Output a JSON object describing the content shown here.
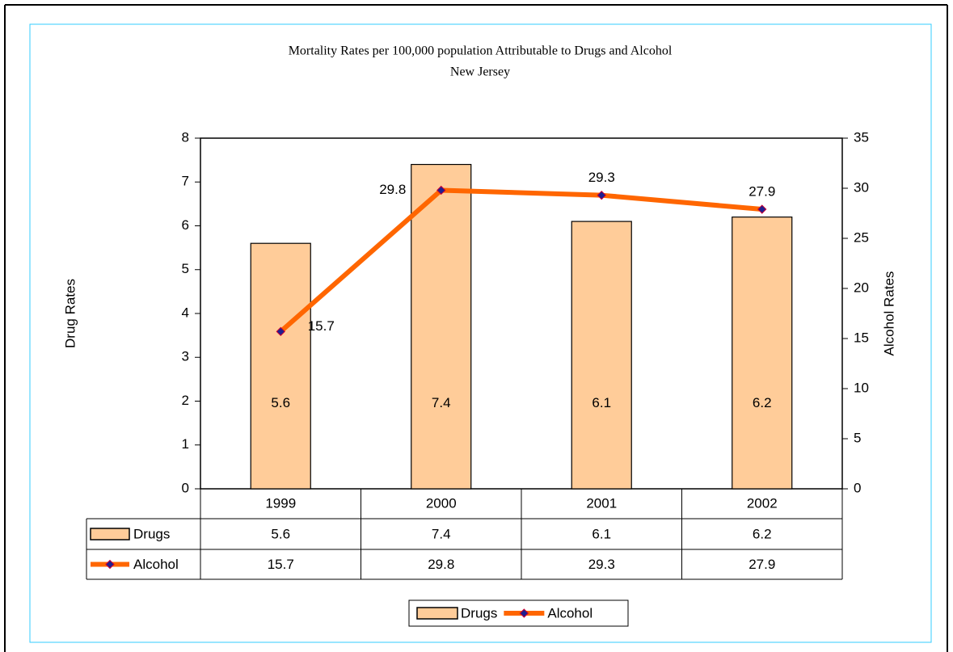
{
  "chart_data": {
    "type": "bar",
    "title": "Mortality Rates per 100,000 population Attributable to Drugs and Alcohol",
    "subtitle": "New Jersey",
    "y_label": "Drug Rates",
    "y2_label": "Alcohol Rates",
    "categories": [
      "1999",
      "2000",
      "2001",
      "2002"
    ],
    "series": [
      {
        "name": "Drugs",
        "type": "bar",
        "color": "#FFCC99",
        "values": [
          5.6,
          7.4,
          6.1,
          6.2
        ]
      },
      {
        "name": "Alcohol",
        "type": "line",
        "axis": "y2",
        "color": "#FF6600",
        "marker_color": "#1F1F8F",
        "values": [
          15.7,
          29.8,
          29.3,
          27.9
        ]
      }
    ],
    "ylim": [
      0,
      8
    ],
    "yticks": [
      0,
      1,
      2,
      3,
      4,
      5,
      6,
      7,
      8
    ],
    "y2lim": [
      0,
      35
    ],
    "y2ticks": [
      0,
      5,
      10,
      15,
      20,
      25,
      30,
      35
    ],
    "data_table": true,
    "legend": "bottom"
  }
}
